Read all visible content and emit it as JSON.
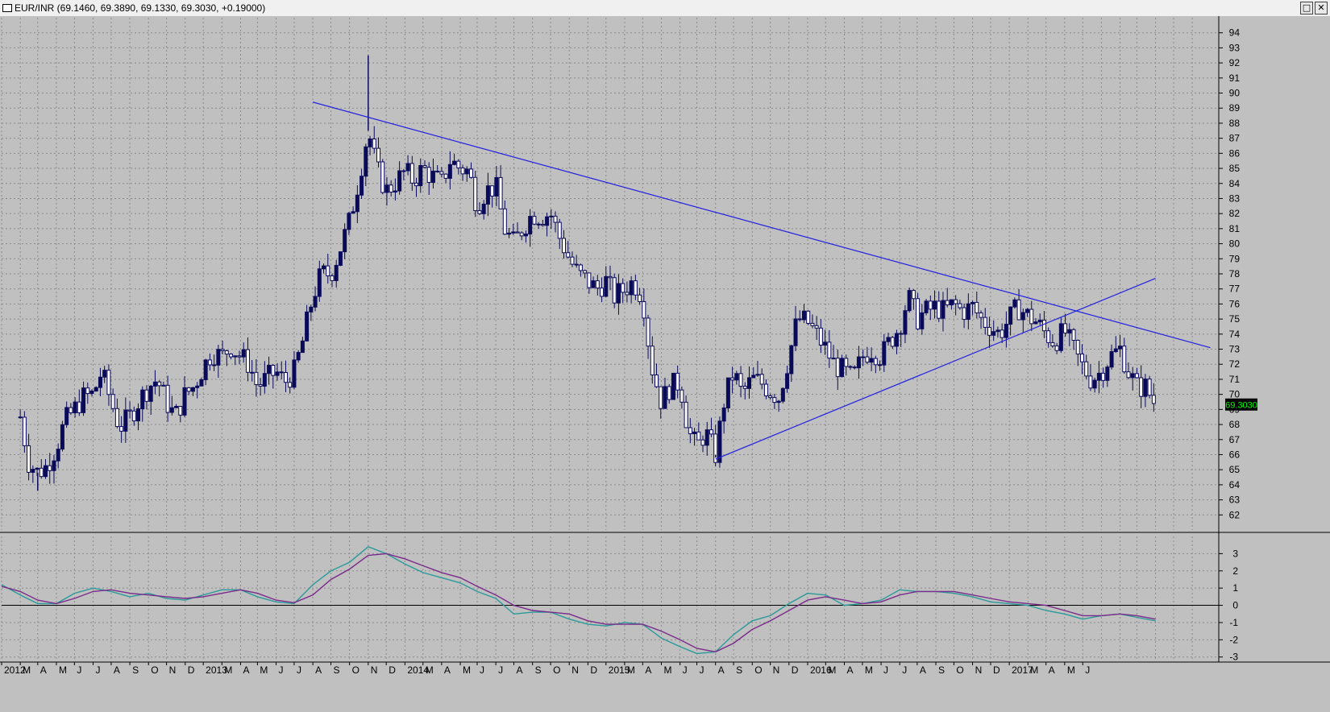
{
  "window": {
    "title": "EUR/INR (69.1460, 69.3890, 69.1330, 69.3030, +0.19000)",
    "restore_icon": "restore-icon",
    "close_icon": "close-icon",
    "restore_glyph": "□",
    "close_glyph": "✕"
  },
  "colors": {
    "background": "#c0c0c0",
    "grid": "#8a8a8a",
    "candle": "#0a0a5a",
    "trendline": "#2020e0",
    "macd": "#7a2a8a",
    "signal": "#2a9a9a",
    "zero_line": "#000000",
    "price_tag_bg": "#000000",
    "price_tag_fg": "#00ff00"
  },
  "chart_data": [
    {
      "type": "candlestick",
      "series_name": "EUR/INR",
      "interval": "weekly",
      "ylim": [
        61,
        95
      ],
      "y_ticks": [
        62,
        63,
        64,
        65,
        66,
        67,
        68,
        69,
        70,
        71,
        72,
        73,
        74,
        75,
        76,
        77,
        78,
        79,
        80,
        81,
        82,
        83,
        84,
        85,
        86,
        87,
        88,
        89,
        90,
        91,
        92,
        93,
        94
      ],
      "last_price_label": "69.3030",
      "x_ticks": [
        "2012",
        "M",
        "A",
        "M",
        "J",
        "J",
        "A",
        "S",
        "O",
        "N",
        "D",
        "2013",
        "M",
        "A",
        "M",
        "J",
        "J",
        "A",
        "S",
        "O",
        "N",
        "D",
        "2014",
        "M",
        "A",
        "M",
        "J",
        "J",
        "A",
        "S",
        "O",
        "N",
        "D",
        "2015",
        "M",
        "A",
        "M",
        "J",
        "J",
        "A",
        "S",
        "O",
        "N",
        "D",
        "2016",
        "M",
        "A",
        "M",
        "J",
        "J",
        "A",
        "S",
        "O",
        "N",
        "D",
        "2017",
        "M",
        "A",
        "M",
        "J"
      ],
      "close_path": [
        [
          "2012-02",
          68.5
        ],
        [
          "2012-02-15",
          65.5
        ],
        [
          "2012-03",
          64.8
        ],
        [
          "2012-03-15",
          65.2
        ],
        [
          "2012-04",
          66.5
        ],
        [
          "2012-04-15",
          68.2
        ],
        [
          "2012-05",
          69.0
        ],
        [
          "2012-05-15",
          69.8
        ],
        [
          "2012-06",
          70.0
        ],
        [
          "2012-06-15",
          71.5
        ],
        [
          "2012-07",
          69.5
        ],
        [
          "2012-07-15",
          67.8
        ],
        [
          "2012-08",
          68.5
        ],
        [
          "2012-08-15",
          69.5
        ],
        [
          "2012-09",
          70.5
        ],
        [
          "2012-09-15",
          71.0
        ],
        [
          "2012-10",
          69.5
        ],
        [
          "2012-10-15",
          68.5
        ],
        [
          "2012-11",
          70.0
        ],
        [
          "2012-11-15",
          70.5
        ],
        [
          "2012-12",
          71.8
        ],
        [
          "2012-12-15",
          72.8
        ],
        [
          "2013-01",
          72.5
        ],
        [
          "2013-01-15",
          73.2
        ],
        [
          "2013-02",
          72.5
        ],
        [
          "2013-02-15",
          72.0
        ],
        [
          "2013-03",
          70.5
        ],
        [
          "2013-03-15",
          71.0
        ],
        [
          "2013-04",
          71.5
        ],
        [
          "2013-04-15",
          70.8
        ],
        [
          "2013-05",
          71.5
        ],
        [
          "2013-05-15",
          73.5
        ],
        [
          "2013-06",
          76.5
        ],
        [
          "2013-06-15",
          78.0
        ],
        [
          "2013-07",
          78.0
        ],
        [
          "2013-07-15",
          79.5
        ],
        [
          "2013-08",
          81.5
        ],
        [
          "2013-08-15",
          84.0
        ],
        [
          "2013-09",
          87.5
        ],
        [
          "2013-09-15",
          85.0
        ],
        [
          "2013-10",
          83.5
        ],
        [
          "2013-10-15",
          84.0
        ],
        [
          "2013-11",
          84.8
        ],
        [
          "2013-11-15",
          84.2
        ],
        [
          "2013-12",
          85.0
        ],
        [
          "2013-12-15",
          84.5
        ],
        [
          "2014-01",
          84.0
        ],
        [
          "2014-01-15",
          85.5
        ],
        [
          "2014-02",
          85.0
        ],
        [
          "2014-02-15",
          84.8
        ],
        [
          "2014-03",
          82.5
        ],
        [
          "2014-03-15",
          83.5
        ],
        [
          "2014-04",
          83.8
        ],
        [
          "2014-04-15",
          81.0
        ],
        [
          "2014-05",
          80.0
        ],
        [
          "2014-05-15",
          81.0
        ],
        [
          "2014-06",
          82.0
        ],
        [
          "2014-06-15",
          81.8
        ],
        [
          "2014-07",
          82.0
        ],
        [
          "2014-07-15",
          80.5
        ],
        [
          "2014-08",
          79.0
        ],
        [
          "2014-08-15",
          78.0
        ],
        [
          "2014-09",
          77.5
        ],
        [
          "2014-09-15",
          77.0
        ],
        [
          "2014-10",
          77.5
        ],
        [
          "2014-10-15",
          76.5
        ],
        [
          "2014-11",
          77.0
        ],
        [
          "2014-11-15",
          77.5
        ],
        [
          "2014-12",
          76.5
        ],
        [
          "2014-12-15",
          72.0
        ],
        [
          "2015-01",
          69.5
        ],
        [
          "2015-01-15",
          70.5
        ],
        [
          "2015-02",
          70.8
        ],
        [
          "2015-02-15",
          67.5
        ],
        [
          "2015-03",
          66.5
        ],
        [
          "2015-03-15",
          67.5
        ],
        [
          "2015-04",
          66.0
        ],
        [
          "2015-04-15",
          69.5
        ],
        [
          "2015-05",
          71.5
        ],
        [
          "2015-05-15",
          70.0
        ],
        [
          "2015-06",
          71.0
        ],
        [
          "2015-06-15",
          70.8
        ],
        [
          "2015-07",
          70.2
        ],
        [
          "2015-07-15",
          69.8
        ],
        [
          "2015-08",
          72.5
        ],
        [
          "2015-08-15",
          75.0
        ],
        [
          "2015-09",
          74.8
        ],
        [
          "2015-09-15",
          74.0
        ],
        [
          "2015-10",
          73.0
        ],
        [
          "2015-10-15",
          72.0
        ],
        [
          "2015-11",
          71.5
        ],
        [
          "2015-11-15",
          71.0
        ],
        [
          "2015-12",
          72.5
        ],
        [
          "2015-12-15",
          73.0
        ],
        [
          "2016-01",
          72.5
        ],
        [
          "2016-01-15",
          73.5
        ],
        [
          "2016-02",
          74.5
        ],
        [
          "2016-02-15",
          76.5
        ],
        [
          "2016-03",
          75.0
        ],
        [
          "2016-03-15",
          75.5
        ],
        [
          "2016-04",
          75.8
        ],
        [
          "2016-04-15",
          75.5
        ],
        [
          "2016-05",
          76.0
        ],
        [
          "2016-05-15",
          75.5
        ],
        [
          "2016-06",
          75.8
        ],
        [
          "2016-06-15",
          75.0
        ],
        [
          "2016-07",
          74.5
        ],
        [
          "2016-07-15",
          74.0
        ],
        [
          "2016-08",
          75.0
        ],
        [
          "2016-08-15",
          75.8
        ],
        [
          "2016-09",
          75.2
        ],
        [
          "2016-09-15",
          74.8
        ],
        [
          "2016-10",
          74.0
        ],
        [
          "2016-10-15",
          73.5
        ],
        [
          "2016-11",
          74.2
        ],
        [
          "2016-11-15",
          73.0
        ],
        [
          "2016-12",
          71.8
        ],
        [
          "2016-12-15",
          71.0
        ],
        [
          "2017-01",
          71.5
        ],
        [
          "2017-01-15",
          72.5
        ],
        [
          "2017-02",
          73.0
        ],
        [
          "2017-02-15",
          71.5
        ],
        [
          "2017-03",
          70.5
        ],
        [
          "2017-03-15",
          70.5
        ],
        [
          "2017-04",
          69.3
        ]
      ],
      "notable_extremes": [
        {
          "date": "2013-09",
          "high": 92.5
        },
        {
          "date": "2015-04",
          "low": 65.8
        },
        {
          "date": "2012-03",
          "low": 63.6
        }
      ],
      "trendlines": [
        {
          "name": "resistance",
          "from": [
            "2013-06",
            89.4
          ],
          "to": [
            "2017-07",
            73.1
          ]
        },
        {
          "name": "support",
          "from": [
            "2015-04",
            65.7
          ],
          "to": [
            "2017-04",
            77.7
          ]
        }
      ]
    },
    {
      "type": "line",
      "panel": "oscillator",
      "ylim": [
        -3.2,
        4.0
      ],
      "y_ticks": [
        -3,
        -2,
        -1,
        0,
        1,
        2,
        3
      ],
      "series": [
        {
          "points": [
            [
              "2012-01",
              1.2
            ],
            [
              "2012-02",
              0.6
            ],
            [
              "2012-03",
              0.1
            ],
            [
              "2012-04",
              0.1
            ],
            [
              "2012-05",
              0.7
            ],
            [
              "2012-06",
              1.0
            ],
            [
              "2012-07",
              0.8
            ],
            [
              "2012-08",
              0.5
            ],
            [
              "2012-09",
              0.7
            ],
            [
              "2012-10",
              0.4
            ],
            [
              "2012-11",
              0.3
            ],
            [
              "2012-12",
              0.6
            ],
            [
              "2013-01",
              0.9
            ],
            [
              "2013-02",
              0.9
            ],
            [
              "2013-03",
              0.5
            ],
            [
              "2013-04",
              0.2
            ],
            [
              "2013-05",
              0.1
            ],
            [
              "2013-06",
              1.2
            ],
            [
              "2013-07",
              2.0
            ],
            [
              "2013-08",
              2.5
            ],
            [
              "2013-09",
              3.4
            ],
            [
              "2013-10",
              3.0
            ],
            [
              "2013-11",
              2.4
            ],
            [
              "2013-12",
              1.9
            ],
            [
              "2014-01",
              1.6
            ],
            [
              "2014-02",
              1.3
            ],
            [
              "2014-03",
              0.8
            ],
            [
              "2014-04",
              0.4
            ],
            [
              "2014-05",
              -0.5
            ],
            [
              "2014-06",
              -0.4
            ],
            [
              "2014-07",
              -0.4
            ],
            [
              "2014-08",
              -0.8
            ],
            [
              "2014-09",
              -1.1
            ],
            [
              "2014-10",
              -1.2
            ],
            [
              "2014-11",
              -1.0
            ],
            [
              "2014-12",
              -1.1
            ],
            [
              "2015-01",
              -1.9
            ],
            [
              "2015-02",
              -2.4
            ],
            [
              "2015-03",
              -2.8
            ],
            [
              "2015-04",
              -2.7
            ],
            [
              "2015-05",
              -1.7
            ],
            [
              "2015-06",
              -0.9
            ],
            [
              "2015-07",
              -0.6
            ],
            [
              "2015-08",
              0.1
            ],
            [
              "2015-09",
              0.7
            ],
            [
              "2015-10",
              0.6
            ],
            [
              "2015-11",
              0.0
            ],
            [
              "2015-12",
              0.1
            ],
            [
              "2016-01",
              0.3
            ],
            [
              "2016-02",
              0.9
            ],
            [
              "2016-03",
              0.8
            ],
            [
              "2016-04",
              0.8
            ],
            [
              "2016-05",
              0.7
            ],
            [
              "2016-06",
              0.5
            ],
            [
              "2016-07",
              0.2
            ],
            [
              "2016-08",
              0.1
            ],
            [
              "2016-09",
              0.0
            ],
            [
              "2016-10",
              -0.3
            ],
            [
              "2016-11",
              -0.5
            ],
            [
              "2016-12",
              -0.8
            ],
            [
              "2017-01",
              -0.6
            ],
            [
              "2017-02",
              -0.5
            ],
            [
              "2017-03",
              -0.7
            ],
            [
              "2017-04",
              -0.9
            ]
          ]
        },
        {
          "points": [
            [
              "2012-01",
              1.1
            ],
            [
              "2012-02",
              0.8
            ],
            [
              "2012-03",
              0.3
            ],
            [
              "2012-04",
              0.1
            ],
            [
              "2012-05",
              0.4
            ],
            [
              "2012-06",
              0.8
            ],
            [
              "2012-07",
              0.9
            ],
            [
              "2012-08",
              0.7
            ],
            [
              "2012-09",
              0.6
            ],
            [
              "2012-10",
              0.5
            ],
            [
              "2012-11",
              0.4
            ],
            [
              "2012-12",
              0.5
            ],
            [
              "2013-01",
              0.7
            ],
            [
              "2013-02",
              0.9
            ],
            [
              "2013-03",
              0.7
            ],
            [
              "2013-04",
              0.3
            ],
            [
              "2013-05",
              0.15
            ],
            [
              "2013-06",
              0.6
            ],
            [
              "2013-07",
              1.5
            ],
            [
              "2013-08",
              2.1
            ],
            [
              "2013-09",
              2.9
            ],
            [
              "2013-10",
              3.0
            ],
            [
              "2013-11",
              2.7
            ],
            [
              "2013-12",
              2.3
            ],
            [
              "2014-01",
              1.9
            ],
            [
              "2014-02",
              1.6
            ],
            [
              "2014-03",
              1.1
            ],
            [
              "2014-04",
              0.6
            ],
            [
              "2014-05",
              0.0
            ],
            [
              "2014-06",
              -0.3
            ],
            [
              "2014-07",
              -0.4
            ],
            [
              "2014-08",
              -0.5
            ],
            [
              "2014-09",
              -0.9
            ],
            [
              "2014-10",
              -1.1
            ],
            [
              "2014-11",
              -1.1
            ],
            [
              "2014-12",
              -1.1
            ],
            [
              "2015-01",
              -1.5
            ],
            [
              "2015-02",
              -2.0
            ],
            [
              "2015-03",
              -2.5
            ],
            [
              "2015-04",
              -2.7
            ],
            [
              "2015-05",
              -2.2
            ],
            [
              "2015-06",
              -1.4
            ],
            [
              "2015-07",
              -0.9
            ],
            [
              "2015-08",
              -0.3
            ],
            [
              "2015-09",
              0.3
            ],
            [
              "2015-10",
              0.5
            ],
            [
              "2015-11",
              0.3
            ],
            [
              "2015-12",
              0.1
            ],
            [
              "2016-01",
              0.2
            ],
            [
              "2016-02",
              0.6
            ],
            [
              "2016-03",
              0.8
            ],
            [
              "2016-04",
              0.8
            ],
            [
              "2016-05",
              0.8
            ],
            [
              "2016-06",
              0.6
            ],
            [
              "2016-07",
              0.4
            ],
            [
              "2016-08",
              0.2
            ],
            [
              "2016-09",
              0.1
            ],
            [
              "2016-10",
              0.0
            ],
            [
              "2016-11",
              -0.3
            ],
            [
              "2016-12",
              -0.6
            ],
            [
              "2017-01",
              -0.6
            ],
            [
              "2017-02",
              -0.5
            ],
            [
              "2017-03",
              -0.6
            ],
            [
              "2017-04",
              -0.8
            ]
          ]
        }
      ]
    }
  ]
}
